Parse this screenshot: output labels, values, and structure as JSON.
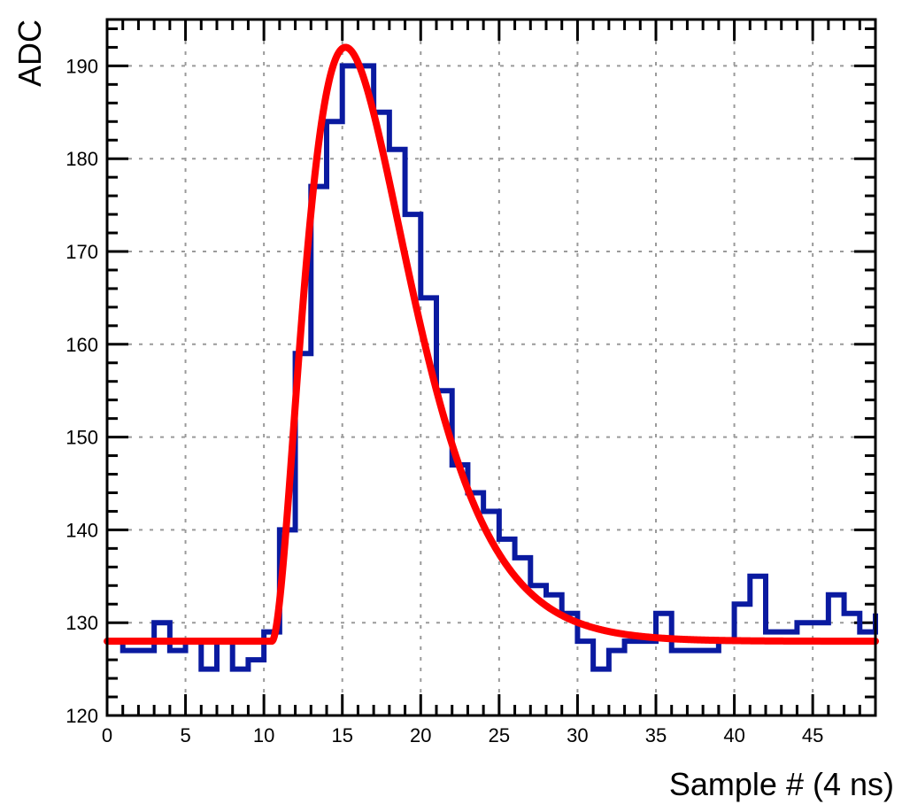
{
  "chart_data": {
    "type": "line",
    "title": "",
    "xlabel": "Sample #  (4 ns)",
    "ylabel": "ADC",
    "xlim": [
      0,
      49
    ],
    "ylim": [
      120,
      195
    ],
    "grid": true,
    "x_ticks": [
      0,
      5,
      10,
      15,
      20,
      25,
      30,
      35,
      40,
      45
    ],
    "y_ticks": [
      120,
      130,
      140,
      150,
      160,
      170,
      180,
      190
    ],
    "x_tick_labels": [
      "0",
      "5",
      "10",
      "15",
      "20",
      "25",
      "30",
      "35",
      "40",
      "45"
    ],
    "y_tick_labels": [
      "120",
      "130",
      "140",
      "150",
      "160",
      "170",
      "180",
      "190"
    ],
    "series": [
      {
        "kind": "histogram",
        "color": "#0a1aa0",
        "bin_width": 1,
        "values": [
          128,
          127,
          127,
          130,
          127,
          128,
          125,
          128,
          125,
          126,
          129,
          140,
          159,
          177,
          184,
          190,
          190,
          185,
          181,
          174,
          165,
          155,
          147,
          144,
          142,
          139,
          137,
          134,
          133,
          131,
          128,
          125,
          127,
          128,
          128,
          131,
          127,
          127,
          127,
          128,
          132,
          135,
          129,
          129,
          130,
          130,
          133,
          131,
          129,
          131
        ]
      },
      {
        "kind": "fit",
        "color": "#ff0000",
        "baseline": 128,
        "onset": 10.5,
        "peak_x": 15.2,
        "peak_y": 192,
        "x_end": 49
      }
    ]
  }
}
